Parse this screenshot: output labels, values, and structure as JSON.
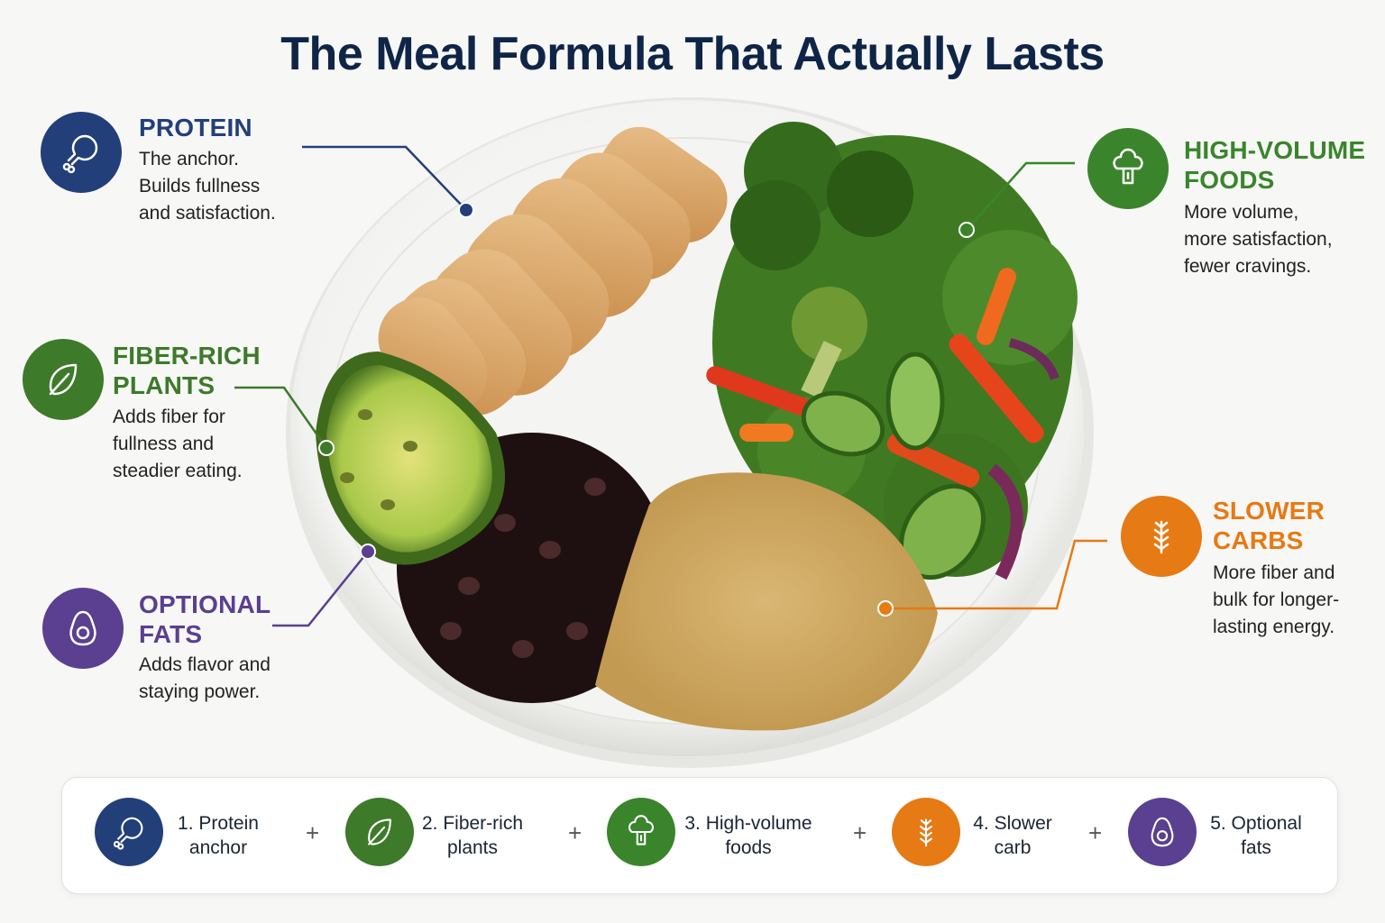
{
  "title": "The Meal Formula That Actually Lasts",
  "colors": {
    "protein": "#233f7a",
    "fiber": "#3d7a2a",
    "volume": "#3a852c",
    "carbs": "#e67a14",
    "fats": "#5b3f90"
  },
  "categories": [
    {
      "key": "protein",
      "icon": "drumstick-icon",
      "title": "PROTEIN",
      "description": "The anchor.\nBuilds fullness\nand satisfaction."
    },
    {
      "key": "fiber",
      "icon": "leaf-icon",
      "title": "FIBER-RICH\nPLANTS",
      "description": "Adds fiber for\nfullness and\nsteadier eating."
    },
    {
      "key": "fats",
      "icon": "avocado-icon",
      "title": "OPTIONAL\nFATS",
      "description": "Adds flavor and\nstaying power."
    },
    {
      "key": "volume",
      "icon": "broccoli-icon",
      "title": "HIGH-VOLUME\nFOODS",
      "description": "More volume,\nmore satisfaction,\nfewer cravings."
    },
    {
      "key": "carbs",
      "icon": "wheat-icon",
      "title": "SLOWER\nCARBS",
      "description": "More fiber and\nbulk for longer-\nlasting energy."
    }
  ],
  "summary": [
    {
      "label": "1. Protein\nanchor",
      "icon": "drumstick-icon"
    },
    {
      "label": "2. Fiber-rich\nplants",
      "icon": "leaf-icon"
    },
    {
      "label": "3. High-volume\nfoods",
      "icon": "broccoli-icon"
    },
    {
      "label": "4. Slower\ncarb",
      "icon": "wheat-icon"
    },
    {
      "label": "5. Optional\nfats",
      "icon": "avocado-icon"
    }
  ],
  "plus_sign": "+"
}
